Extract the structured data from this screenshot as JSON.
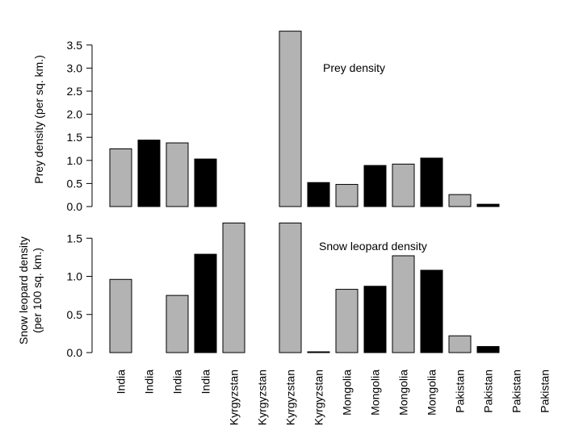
{
  "chart_data": [
    {
      "type": "bar",
      "title": "Prey density",
      "ylabel": "Prey density (per sq. km.)",
      "ylim": [
        0,
        3.8
      ],
      "yticks": [
        "0.0",
        "0.5",
        "1.0",
        "1.5",
        "2.0",
        "2.5",
        "3.0",
        "3.5"
      ],
      "bar_colors": [
        "#b3b3b3",
        "#000000",
        "#b3b3b3",
        "#000000",
        "#b3b3b3",
        "#000000",
        "#b3b3b3",
        "#000000",
        "#b3b3b3",
        "#000000",
        "#b3b3b3",
        "#000000",
        "#b3b3b3",
        "#000000",
        "#b3b3b3",
        "#000000"
      ],
      "values": [
        1.25,
        1.44,
        1.38,
        1.03,
        null,
        null,
        3.8,
        0.52,
        0.48,
        0.89,
        0.92,
        1.05,
        0.26,
        0.05,
        null,
        null
      ]
    },
    {
      "type": "bar",
      "title": "Snow leopard density",
      "ylabel": "Snow leopard density (per 100 sq. km.)",
      "ylabel_lines": [
        "Snow leopard density",
        "(per 100 sq. km.)"
      ],
      "ylim": [
        0,
        1.7
      ],
      "yticks": [
        "0.0",
        "0.5",
        "1.0",
        "1.5"
      ],
      "bar_colors": [
        "#b3b3b3",
        "#000000",
        "#b3b3b3",
        "#000000",
        "#b3b3b3",
        "#000000",
        "#b3b3b3",
        "#000000",
        "#b3b3b3",
        "#000000",
        "#b3b3b3",
        "#000000",
        "#b3b3b3",
        "#000000",
        "#b3b3b3",
        "#000000"
      ],
      "values": [
        0.96,
        null,
        0.75,
        1.29,
        1.7,
        null,
        1.7,
        0.01,
        0.83,
        0.87,
        1.27,
        1.08,
        0.22,
        0.08,
        null,
        null
      ]
    }
  ],
  "categories": [
    "India",
    "India",
    "India",
    "India",
    "Kyrgyzstan",
    "Kyrgyzstan",
    "Kyrgyzstan",
    "Kyrgyzstan",
    "Mongolia",
    "Mongolia",
    "Mongolia",
    "Mongolia",
    "Pakistan",
    "Pakistan",
    "Pakistan",
    "Pakistan"
  ]
}
